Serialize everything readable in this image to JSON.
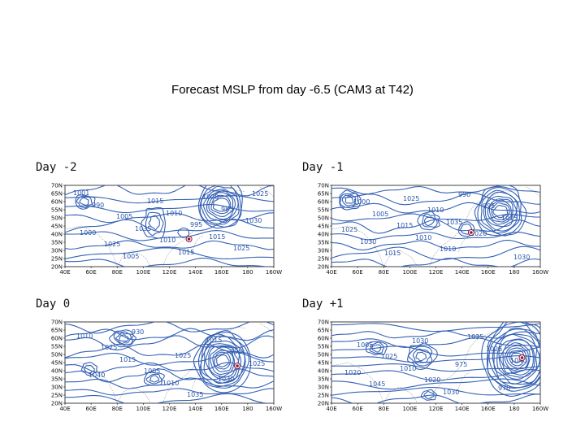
{
  "title": "Forecast MSLP from day -6.5 (CAM3 at T42)",
  "lat_ticks": [
    "70N",
    "65N",
    "60N",
    "55N",
    "50N",
    "45N",
    "40N",
    "35N",
    "30N",
    "25N",
    "20N"
  ],
  "lon_ticks": [
    "40E",
    "60E",
    "80E",
    "100E",
    "120E",
    "140E",
    "160E",
    "180",
    "160W"
  ],
  "colors": {
    "contour": "#3561b5",
    "marker": "#8b1a3a",
    "coast": "#9a9a9a"
  },
  "panels": [
    {
      "label": "Day -2",
      "marker": {
        "lon": 135,
        "lat": 37
      },
      "contour_labels": [
        "1001",
        "1005",
        "1010",
        "1020",
        "1030",
        "1025",
        "1015",
        "995",
        "1025",
        "990",
        "1035",
        "1015",
        "985",
        "1000",
        "1005",
        "1010",
        "1015",
        "1025"
      ]
    },
    {
      "label": "Day -1",
      "marker": {
        "lon": 147,
        "lat": 41
      },
      "contour_labels": [
        "1000",
        "1015",
        "1010",
        "995",
        "1025",
        "1015",
        "1010",
        "1020",
        "1030",
        "1005",
        "1010",
        "990",
        "1015",
        "1030",
        "1025",
        "1035"
      ]
    },
    {
      "label": "Day 0",
      "marker": {
        "lon": 172,
        "lat": 43
      },
      "contour_labels": [
        "1025",
        "1005",
        "1035",
        "995",
        "1040",
        "930",
        "1025",
        "1030",
        "1010",
        "1015",
        "1010",
        "1015",
        "1025"
      ]
    },
    {
      "label": "Day +1",
      "marker": {
        "lon": 186,
        "lat": 48
      },
      "contour_labels": [
        "1025",
        "1020",
        "1035",
        "1040",
        "1045",
        "1030",
        "975",
        "970",
        "1005",
        "1010",
        "1030",
        "1025",
        "1020"
      ]
    }
  ]
}
